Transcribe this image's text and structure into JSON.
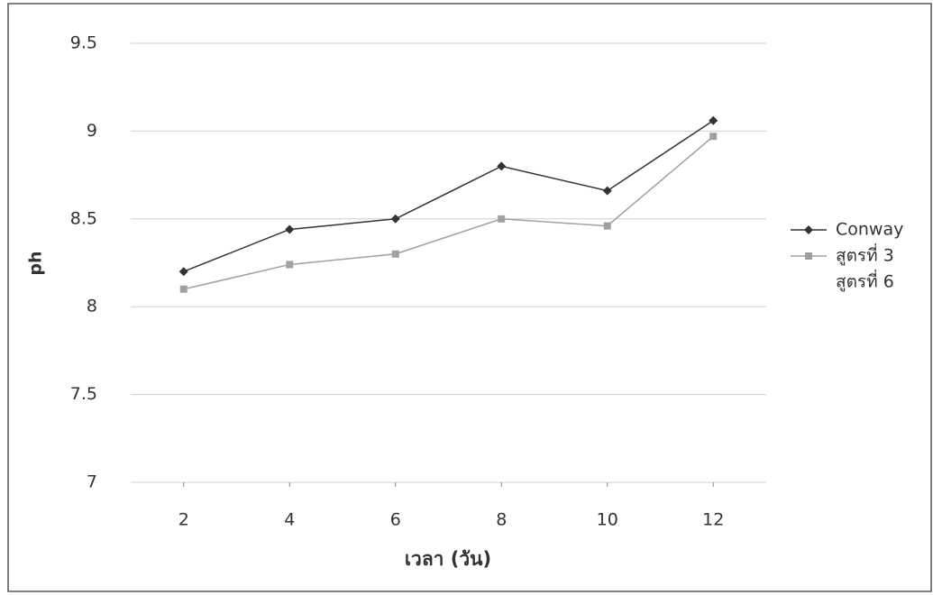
{
  "chart_data": {
    "type": "line",
    "x_label": "เวลา (วัน)",
    "y_label": "ph",
    "x": [
      2,
      4,
      6,
      8,
      10,
      12
    ],
    "xlim": [
      1,
      13
    ],
    "xticks": [
      2,
      4,
      6,
      8,
      10,
      12
    ],
    "ylim": [
      7,
      9.5
    ],
    "yticks": [
      7,
      7.5,
      8,
      8.5,
      9,
      9.5
    ],
    "grid": true,
    "legend": "right",
    "series": [
      {
        "name": "Conway",
        "color": "#333333",
        "marker": "diamond",
        "values": [
          8.2,
          8.44,
          8.5,
          8.8,
          8.66,
          9.06
        ]
      },
      {
        "name": "สูตรที่ 3",
        "color": "#a0a0a0",
        "marker": "square",
        "values": [
          8.1,
          8.24,
          8.3,
          8.5,
          8.46,
          8.97
        ]
      },
      {
        "name": "สูตรที่ 6",
        "color": "#ffffff",
        "marker": "none",
        "values": [
          null,
          null,
          null,
          null,
          null,
          null
        ]
      }
    ]
  }
}
